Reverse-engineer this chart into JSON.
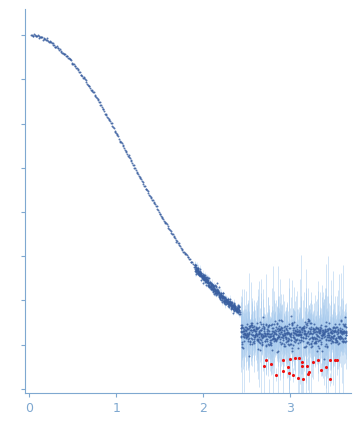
{
  "title": "",
  "xlabel": "",
  "ylabel": "",
  "xlim": [
    -0.05,
    3.7
  ],
  "ylim": [
    -0.55,
    3.8
  ],
  "dot_color": "#3A5FA0",
  "error_color": "#AACCEE",
  "outlier_color": "#EE1111",
  "bg_color": "#FFFFFF",
  "axis_color": "#7FA8D0",
  "tick_color": "#7FA8D0",
  "label_color": "#7FA8D0",
  "figsize": [
    3.58,
    4.37
  ],
  "dpi": 100,
  "n_low": 220,
  "n_mid": 350,
  "n_high": 700
}
